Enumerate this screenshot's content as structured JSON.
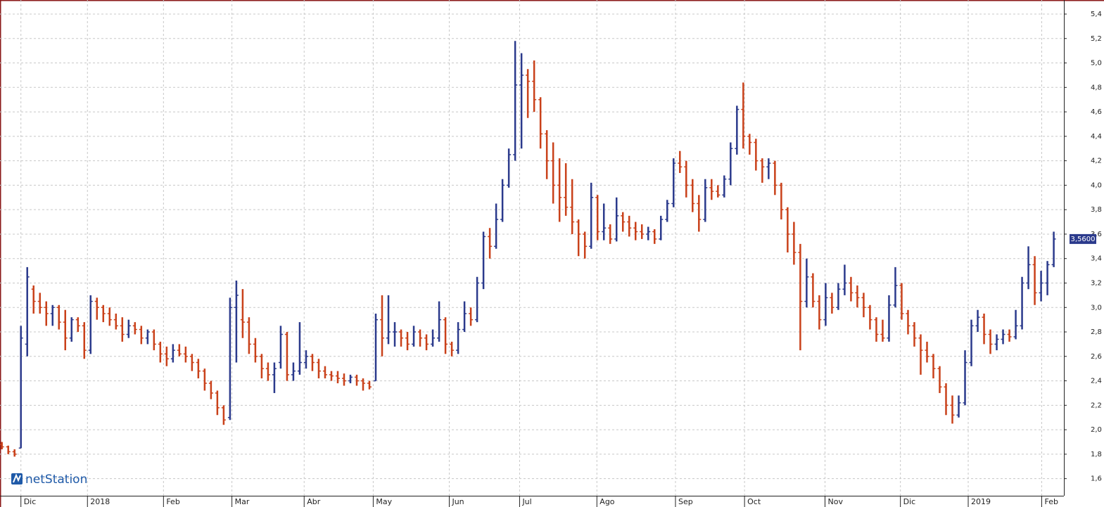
{
  "chart_data": {
    "type": "ohlc",
    "brand": "netStation",
    "up_color": "#2b3a8c",
    "down_color": "#c9411a",
    "ylim": [
      1.46,
      5.515
    ],
    "yticks": [
      {
        "value": 1.6,
        "label": "1,6"
      },
      {
        "value": 1.8,
        "label": "1,8"
      },
      {
        "value": 2.0,
        "label": "2,0"
      },
      {
        "value": 2.2,
        "label": "2,2"
      },
      {
        "value": 2.4,
        "label": "2,4"
      },
      {
        "value": 2.6,
        "label": "2,6"
      },
      {
        "value": 2.8,
        "label": "2,8"
      },
      {
        "value": 3.0,
        "label": "3,0"
      },
      {
        "value": 3.2,
        "label": "3,2"
      },
      {
        "value": 3.4,
        "label": "3,4"
      },
      {
        "value": 3.6,
        "label": "3,6"
      },
      {
        "value": 3.8,
        "label": "3,8"
      },
      {
        "value": 4.0,
        "label": "4,0"
      },
      {
        "value": 4.2,
        "label": "4,2"
      },
      {
        "value": 4.4,
        "label": "4,4"
      },
      {
        "value": 4.6,
        "label": "4,6"
      },
      {
        "value": 4.8,
        "label": "4,8"
      },
      {
        "value": 5.0,
        "label": "5,0"
      },
      {
        "value": 5.2,
        "label": "5,2"
      },
      {
        "value": 5.4,
        "label": "5,4"
      }
    ],
    "xlim": [
      -0.3,
      167.6
    ],
    "xticks": [
      {
        "value": 3.0,
        "label": "Dic"
      },
      {
        "value": 13.5,
        "label": "2018"
      },
      {
        "value": 25.5,
        "label": "Feb"
      },
      {
        "value": 36.3,
        "label": "Mar"
      },
      {
        "value": 47.7,
        "label": "Abr"
      },
      {
        "value": 58.6,
        "label": "May"
      },
      {
        "value": 70.6,
        "label": "Jun"
      },
      {
        "value": 81.7,
        "label": "Jul"
      },
      {
        "value": 93.9,
        "label": "Ago"
      },
      {
        "value": 106.3,
        "label": "Sep"
      },
      {
        "value": 117.2,
        "label": "Oct"
      },
      {
        "value": 129.9,
        "label": "Nov"
      },
      {
        "value": 141.8,
        "label": "Dic"
      },
      {
        "value": 152.5,
        "label": "2019"
      },
      {
        "value": 164.1,
        "label": "Feb"
      }
    ],
    "grid": true,
    "last_price": {
      "value": 3.56,
      "label": "3,5600"
    },
    "ohlc": [
      [
        1.88,
        1.9,
        1.84,
        1.86
      ],
      [
        1.86,
        1.87,
        1.8,
        1.82
      ],
      [
        1.82,
        1.84,
        1.78,
        1.8
      ],
      [
        1.85,
        2.85,
        1.85,
        2.75
      ],
      [
        2.7,
        3.33,
        2.6,
        3.25
      ],
      [
        3.15,
        3.18,
        2.95,
        3.05
      ],
      [
        3.05,
        3.12,
        2.95,
        3.0
      ],
      [
        3.0,
        3.05,
        2.85,
        2.95
      ],
      [
        2.95,
        3.02,
        2.85,
        3.0
      ],
      [
        3.0,
        3.02,
        2.82,
        2.88
      ],
      [
        2.88,
        2.98,
        2.65,
        2.75
      ],
      [
        2.75,
        2.92,
        2.72,
        2.9
      ],
      [
        2.9,
        2.92,
        2.8,
        2.85
      ],
      [
        2.85,
        2.88,
        2.58,
        2.65
      ],
      [
        2.65,
        3.1,
        2.62,
        3.05
      ],
      [
        3.05,
        3.08,
        2.9,
        3.0
      ],
      [
        3.0,
        3.02,
        2.88,
        2.95
      ],
      [
        2.95,
        3.0,
        2.85,
        2.9
      ],
      [
        2.9,
        2.95,
        2.82,
        2.85
      ],
      [
        2.85,
        2.92,
        2.72,
        2.78
      ],
      [
        2.78,
        2.9,
        2.75,
        2.85
      ],
      [
        2.85,
        2.88,
        2.78,
        2.82
      ],
      [
        2.82,
        2.85,
        2.7,
        2.75
      ],
      [
        2.75,
        2.82,
        2.7,
        2.8
      ],
      [
        2.8,
        2.82,
        2.65,
        2.7
      ],
      [
        2.7,
        2.72,
        2.55,
        2.62
      ],
      [
        2.62,
        2.68,
        2.52,
        2.58
      ],
      [
        2.58,
        2.7,
        2.55,
        2.65
      ],
      [
        2.65,
        2.7,
        2.6,
        2.62
      ],
      [
        2.62,
        2.68,
        2.55,
        2.6
      ],
      [
        2.6,
        2.62,
        2.48,
        2.55
      ],
      [
        2.55,
        2.58,
        2.42,
        2.48
      ],
      [
        2.48,
        2.5,
        2.32,
        2.38
      ],
      [
        2.38,
        2.4,
        2.25,
        2.3
      ],
      [
        2.3,
        2.32,
        2.12,
        2.18
      ],
      [
        2.18,
        2.2,
        2.04,
        2.08
      ],
      [
        2.1,
        3.08,
        2.08,
        3.0
      ],
      [
        3.0,
        3.22,
        2.55,
        3.1
      ],
      [
        2.9,
        3.15,
        2.75,
        2.88
      ],
      [
        2.88,
        2.92,
        2.62,
        2.7
      ],
      [
        2.7,
        2.75,
        2.55,
        2.6
      ],
      [
        2.6,
        2.62,
        2.42,
        2.5
      ],
      [
        2.5,
        2.55,
        2.4,
        2.45
      ],
      [
        2.45,
        2.55,
        2.3,
        2.5
      ],
      [
        2.55,
        2.85,
        2.5,
        2.78
      ],
      [
        2.78,
        2.8,
        2.4,
        2.45
      ],
      [
        2.45,
        2.55,
        2.4,
        2.48
      ],
      [
        2.48,
        2.88,
        2.45,
        2.55
      ],
      [
        2.55,
        2.65,
        2.5,
        2.6
      ],
      [
        2.6,
        2.62,
        2.48,
        2.55
      ],
      [
        2.55,
        2.58,
        2.42,
        2.48
      ],
      [
        2.48,
        2.52,
        2.42,
        2.45
      ],
      [
        2.45,
        2.48,
        2.4,
        2.44
      ],
      [
        2.44,
        2.48,
        2.38,
        2.42
      ],
      [
        2.42,
        2.46,
        2.36,
        2.4
      ],
      [
        2.4,
        2.45,
        2.38,
        2.43
      ],
      [
        2.43,
        2.45,
        2.36,
        2.4
      ],
      [
        2.4,
        2.42,
        2.32,
        2.38
      ],
      [
        2.38,
        2.4,
        2.33,
        2.35
      ],
      [
        2.4,
        2.95,
        2.4,
        2.9
      ],
      [
        2.9,
        3.1,
        2.6,
        2.75
      ],
      [
        2.75,
        3.1,
        2.7,
        2.8
      ],
      [
        2.8,
        2.88,
        2.68,
        2.8
      ],
      [
        2.8,
        2.82,
        2.68,
        2.75
      ],
      [
        2.75,
        2.8,
        2.65,
        2.7
      ],
      [
        2.7,
        2.85,
        2.68,
        2.8
      ],
      [
        2.8,
        2.82,
        2.68,
        2.75
      ],
      [
        2.75,
        2.78,
        2.65,
        2.7
      ],
      [
        2.7,
        2.82,
        2.68,
        2.75
      ],
      [
        2.75,
        3.05,
        2.72,
        2.9
      ],
      [
        2.9,
        2.92,
        2.62,
        2.7
      ],
      [
        2.7,
        2.72,
        2.6,
        2.65
      ],
      [
        2.65,
        2.88,
        2.62,
        2.82
      ],
      [
        2.82,
        3.05,
        2.8,
        2.95
      ],
      [
        2.95,
        3.0,
        2.85,
        2.9
      ],
      [
        2.9,
        3.25,
        2.88,
        3.2
      ],
      [
        3.2,
        3.62,
        3.15,
        3.58
      ],
      [
        3.58,
        3.65,
        3.4,
        3.5
      ],
      [
        3.5,
        3.85,
        3.48,
        3.72
      ],
      [
        3.72,
        4.05,
        3.7,
        4.0
      ],
      [
        4.0,
        4.3,
        3.98,
        4.25
      ],
      [
        4.25,
        5.18,
        4.2,
        4.82
      ],
      [
        4.82,
        5.08,
        4.3,
        4.9
      ],
      [
        4.9,
        4.95,
        4.55,
        4.85
      ],
      [
        4.85,
        5.02,
        4.6,
        4.7
      ],
      [
        4.7,
        4.72,
        4.3,
        4.42
      ],
      [
        4.42,
        4.45,
        4.05,
        4.2
      ],
      [
        4.2,
        4.35,
        3.85,
        4.0
      ],
      [
        4.0,
        4.22,
        3.7,
        3.9
      ],
      [
        3.9,
        4.18,
        3.75,
        3.82
      ],
      [
        3.82,
        4.05,
        3.6,
        3.7
      ],
      [
        3.7,
        3.72,
        3.42,
        3.6
      ],
      [
        3.6,
        3.62,
        3.4,
        3.5
      ],
      [
        3.5,
        4.02,
        3.48,
        3.9
      ],
      [
        3.9,
        3.92,
        3.55,
        3.62
      ],
      [
        3.62,
        3.85,
        3.55,
        3.65
      ],
      [
        3.65,
        3.68,
        3.52,
        3.56
      ],
      [
        3.56,
        3.9,
        3.54,
        3.75
      ],
      [
        3.75,
        3.78,
        3.62,
        3.7
      ],
      [
        3.7,
        3.75,
        3.58,
        3.65
      ],
      [
        3.65,
        3.7,
        3.55,
        3.62
      ],
      [
        3.62,
        3.68,
        3.56,
        3.6
      ],
      [
        3.6,
        3.66,
        3.55,
        3.62
      ],
      [
        3.62,
        3.64,
        3.52,
        3.56
      ],
      [
        3.56,
        3.75,
        3.55,
        3.72
      ],
      [
        3.72,
        3.88,
        3.7,
        3.85
      ],
      [
        3.85,
        4.22,
        3.82,
        4.18
      ],
      [
        4.18,
        4.28,
        4.1,
        4.15
      ],
      [
        4.15,
        4.2,
        3.9,
        4.0
      ],
      [
        4.0,
        4.05,
        3.78,
        3.85
      ],
      [
        3.85,
        3.92,
        3.62,
        3.72
      ],
      [
        3.72,
        4.05,
        3.7,
        3.98
      ],
      [
        3.98,
        4.05,
        3.88,
        3.95
      ],
      [
        3.95,
        4.0,
        3.9,
        3.92
      ],
      [
        3.92,
        4.08,
        3.9,
        4.05
      ],
      [
        4.05,
        4.35,
        4.0,
        4.3
      ],
      [
        4.3,
        4.65,
        4.25,
        4.62
      ],
      [
        4.62,
        4.84,
        4.3,
        4.4
      ],
      [
        4.4,
        4.42,
        4.25,
        4.35
      ],
      [
        4.35,
        4.38,
        4.12,
        4.2
      ],
      [
        4.2,
        4.22,
        4.02,
        4.15
      ],
      [
        4.15,
        4.22,
        4.05,
        4.18
      ],
      [
        4.18,
        4.2,
        3.92,
        4.0
      ],
      [
        4.0,
        4.02,
        3.72,
        3.8
      ],
      [
        3.8,
        3.82,
        3.45,
        3.6
      ],
      [
        3.6,
        3.7,
        3.35,
        3.45
      ],
      [
        3.45,
        3.52,
        2.65,
        3.05
      ],
      [
        3.05,
        3.4,
        3.0,
        3.25
      ],
      [
        3.25,
        3.28,
        3.0,
        3.05
      ],
      [
        3.05,
        3.1,
        2.82,
        2.9
      ],
      [
        2.9,
        3.2,
        2.85,
        3.08
      ],
      [
        3.08,
        3.12,
        2.95,
        3.0
      ],
      [
        3.0,
        3.2,
        2.98,
        3.15
      ],
      [
        3.15,
        3.35,
        3.1,
        3.2
      ],
      [
        3.2,
        3.25,
        3.05,
        3.12
      ],
      [
        3.12,
        3.18,
        3.0,
        3.08
      ],
      [
        3.08,
        3.12,
        2.92,
        3.0
      ],
      [
        3.0,
        3.02,
        2.82,
        2.9
      ],
      [
        2.9,
        2.92,
        2.72,
        2.78
      ],
      [
        2.78,
        2.9,
        2.72,
        2.75
      ],
      [
        2.75,
        3.1,
        2.72,
        3.02
      ],
      [
        3.02,
        3.33,
        3.0,
        3.18
      ],
      [
        3.18,
        3.2,
        2.9,
        2.95
      ],
      [
        2.95,
        2.98,
        2.78,
        2.85
      ],
      [
        2.85,
        2.88,
        2.68,
        2.75
      ],
      [
        2.75,
        2.78,
        2.45,
        2.65
      ],
      [
        2.65,
        2.72,
        2.55,
        2.6
      ],
      [
        2.6,
        2.62,
        2.42,
        2.5
      ],
      [
        2.5,
        2.52,
        2.3,
        2.35
      ],
      [
        2.35,
        2.38,
        2.12,
        2.2
      ],
      [
        2.2,
        2.28,
        2.05,
        2.12
      ],
      [
        2.12,
        2.28,
        2.1,
        2.22
      ],
      [
        2.22,
        2.65,
        2.2,
        2.55
      ],
      [
        2.55,
        2.9,
        2.52,
        2.85
      ],
      [
        2.85,
        2.98,
        2.8,
        2.92
      ],
      [
        2.92,
        2.95,
        2.7,
        2.78
      ],
      [
        2.78,
        2.82,
        2.62,
        2.7
      ],
      [
        2.7,
        2.78,
        2.65,
        2.74
      ],
      [
        2.74,
        2.82,
        2.7,
        2.78
      ],
      [
        2.78,
        2.82,
        2.72,
        2.76
      ],
      [
        2.76,
        2.98,
        2.74,
        2.85
      ],
      [
        2.85,
        3.25,
        2.82,
        3.2
      ],
      [
        3.2,
        3.5,
        3.15,
        3.35
      ],
      [
        3.35,
        3.42,
        3.02,
        3.12
      ],
      [
        3.12,
        3.3,
        3.05,
        3.2
      ],
      [
        3.2,
        3.38,
        3.1,
        3.35
      ],
      [
        3.35,
        3.62,
        3.33,
        3.56
      ]
    ]
  }
}
